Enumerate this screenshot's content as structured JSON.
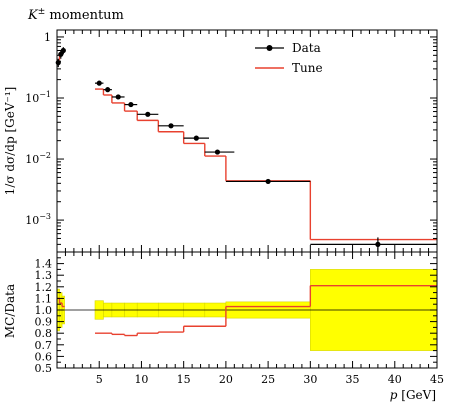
{
  "chart_data": [
    {
      "panel": "main",
      "type": "line",
      "title_base": "K",
      "title_sup": "±",
      "title_rest": "momentum",
      "ylabel": "1/σ dσ/dp [GeV⁻¹]",
      "xlim": [
        0,
        45
      ],
      "ylim": [
        0.0003,
        1.3
      ],
      "yscale": "log",
      "ytick_labels": [
        {
          "value": 1,
          "base": "1",
          "exp": ""
        },
        {
          "value": 0.1,
          "base": "10",
          "exp": "−1"
        },
        {
          "value": 0.01,
          "base": "10",
          "exp": "−2"
        },
        {
          "value": 0.001,
          "base": "10",
          "exp": "−3"
        }
      ],
      "legend": {
        "placement": "top-right",
        "entries": [
          "Data",
          "Tune"
        ]
      },
      "series": [
        {
          "name": "Data",
          "style": "points",
          "color": "#000000",
          "points": [
            {
              "x": 0.15,
              "y": 0.38,
              "xlo": 0.0,
              "xhi": 0.3,
              "yerr": 0.06
            },
            {
              "x": 0.45,
              "y": 0.52,
              "xlo": 0.3,
              "xhi": 0.6,
              "yerr": 0.08
            },
            {
              "x": 0.75,
              "y": 0.6,
              "xlo": 0.6,
              "xhi": 0.9,
              "yerr": 0.08
            },
            {
              "x": 5.0,
              "y": 0.175,
              "xlo": 4.5,
              "xhi": 5.5,
              "yerr": 0.01
            },
            {
              "x": 6.0,
              "y": 0.137,
              "xlo": 5.5,
              "xhi": 6.5,
              "yerr": 0.008
            },
            {
              "x": 7.25,
              "y": 0.104,
              "xlo": 6.5,
              "xhi": 8.0,
              "yerr": 0.006
            },
            {
              "x": 8.75,
              "y": 0.078,
              "xlo": 8.0,
              "xhi": 9.5,
              "yerr": 0.005
            },
            {
              "x": 10.75,
              "y": 0.054,
              "xlo": 9.5,
              "xhi": 12.0,
              "yerr": 0.003
            },
            {
              "x": 13.5,
              "y": 0.035,
              "xlo": 12.0,
              "xhi": 15.0,
              "yerr": 0.002
            },
            {
              "x": 16.5,
              "y": 0.022,
              "xlo": 15.0,
              "xhi": 18.0,
              "yerr": 0.0012
            },
            {
              "x": 19.0,
              "y": 0.013,
              "xlo": 17.5,
              "xhi": 21.0,
              "yerr": 0.0008
            },
            {
              "x": 25.0,
              "y": 0.0043,
              "xlo": 20.0,
              "xhi": 30.0,
              "yerr": 0.0003
            },
            {
              "x": 38.0,
              "y": 0.0004,
              "xlo": 30.0,
              "xhi": 46.0,
              "yerr": 0.00012
            }
          ]
        },
        {
          "name": "Tune",
          "style": "step",
          "color": "#e8412f",
          "bins": [
            {
              "xlo": 0.0,
              "xhi": 0.3,
              "y": 0.42
            },
            {
              "xlo": 0.3,
              "xhi": 0.6,
              "y": 0.55
            },
            {
              "xlo": 0.6,
              "xhi": 0.9,
              "y": 0.62
            },
            {
              "xlo": 4.5,
              "xhi": 5.5,
              "y": 0.14
            },
            {
              "xlo": 5.5,
              "xhi": 6.5,
              "y": 0.112
            },
            {
              "xlo": 6.5,
              "xhi": 8.0,
              "y": 0.083
            },
            {
              "xlo": 8.0,
              "xhi": 9.5,
              "y": 0.061
            },
            {
              "xlo": 9.5,
              "xhi": 12.0,
              "y": 0.043
            },
            {
              "xlo": 12.0,
              "xhi": 15.0,
              "y": 0.028
            },
            {
              "xlo": 15.0,
              "xhi": 17.5,
              "y": 0.018
            },
            {
              "xlo": 17.5,
              "xhi": 20.0,
              "y": 0.0112
            },
            {
              "xlo": 20.0,
              "xhi": 30.0,
              "y": 0.0044
            },
            {
              "xlo": 30.0,
              "xhi": 46.0,
              "y": 0.00048
            }
          ]
        }
      ]
    },
    {
      "panel": "ratio",
      "type": "line",
      "ylabel": "MC/Data",
      "xlabel_var": "p",
      "xlabel_unit": "[GeV]",
      "xlim": [
        0,
        45
      ],
      "ylim": [
        0.5,
        1.5
      ],
      "xticks": [
        5,
        10,
        15,
        20,
        25,
        30,
        35,
        40,
        45
      ],
      "yticks": [
        0.5,
        0.6,
        0.7,
        0.8,
        0.9,
        1.0,
        1.1,
        1.2,
        1.3,
        1.4
      ],
      "reference_line": 1.0,
      "band_color": "#ffff00",
      "band": [
        {
          "xlo": 0.0,
          "xhi": 0.3,
          "lo": 0.82,
          "hi": 1.18
        },
        {
          "xlo": 0.3,
          "xhi": 0.6,
          "lo": 0.85,
          "hi": 1.15
        },
        {
          "xlo": 0.6,
          "xhi": 0.9,
          "lo": 0.88,
          "hi": 1.12
        },
        {
          "xlo": 4.5,
          "xhi": 5.5,
          "lo": 0.92,
          "hi": 1.08
        },
        {
          "xlo": 5.5,
          "xhi": 6.5,
          "lo": 0.94,
          "hi": 1.06
        },
        {
          "xlo": 6.5,
          "xhi": 8.0,
          "lo": 0.94,
          "hi": 1.06
        },
        {
          "xlo": 8.0,
          "xhi": 9.5,
          "lo": 0.94,
          "hi": 1.06
        },
        {
          "xlo": 9.5,
          "xhi": 12.0,
          "lo": 0.94,
          "hi": 1.06
        },
        {
          "xlo": 12.0,
          "xhi": 15.0,
          "lo": 0.94,
          "hi": 1.06
        },
        {
          "xlo": 15.0,
          "xhi": 17.5,
          "lo": 0.94,
          "hi": 1.06
        },
        {
          "xlo": 17.5,
          "xhi": 20.0,
          "lo": 0.94,
          "hi": 1.06
        },
        {
          "xlo": 20.0,
          "xhi": 30.0,
          "lo": 0.93,
          "hi": 1.07
        },
        {
          "xlo": 30.0,
          "xhi": 46.0,
          "lo": 0.65,
          "hi": 1.35
        }
      ],
      "series": [
        {
          "name": "Tune",
          "style": "step",
          "color": "#e8412f",
          "bins": [
            {
              "xlo": 0.0,
              "xhi": 0.3,
              "y": 1.1
            },
            {
              "xlo": 0.3,
              "xhi": 0.6,
              "y": 1.06
            },
            {
              "xlo": 0.6,
              "xhi": 0.9,
              "y": 1.03
            },
            {
              "xlo": 4.5,
              "xhi": 6.5,
              "y": 0.8
            },
            {
              "xlo": 6.5,
              "xhi": 8.0,
              "y": 0.79
            },
            {
              "xlo": 8.0,
              "xhi": 9.5,
              "y": 0.78
            },
            {
              "xlo": 9.5,
              "xhi": 12.0,
              "y": 0.8
            },
            {
              "xlo": 12.0,
              "xhi": 15.0,
              "y": 0.81
            },
            {
              "xlo": 15.0,
              "xhi": 20.0,
              "y": 0.86
            },
            {
              "xlo": 20.0,
              "xhi": 30.0,
              "y": 1.03
            },
            {
              "xlo": 30.0,
              "xhi": 46.0,
              "y": 1.21
            }
          ]
        }
      ]
    }
  ]
}
